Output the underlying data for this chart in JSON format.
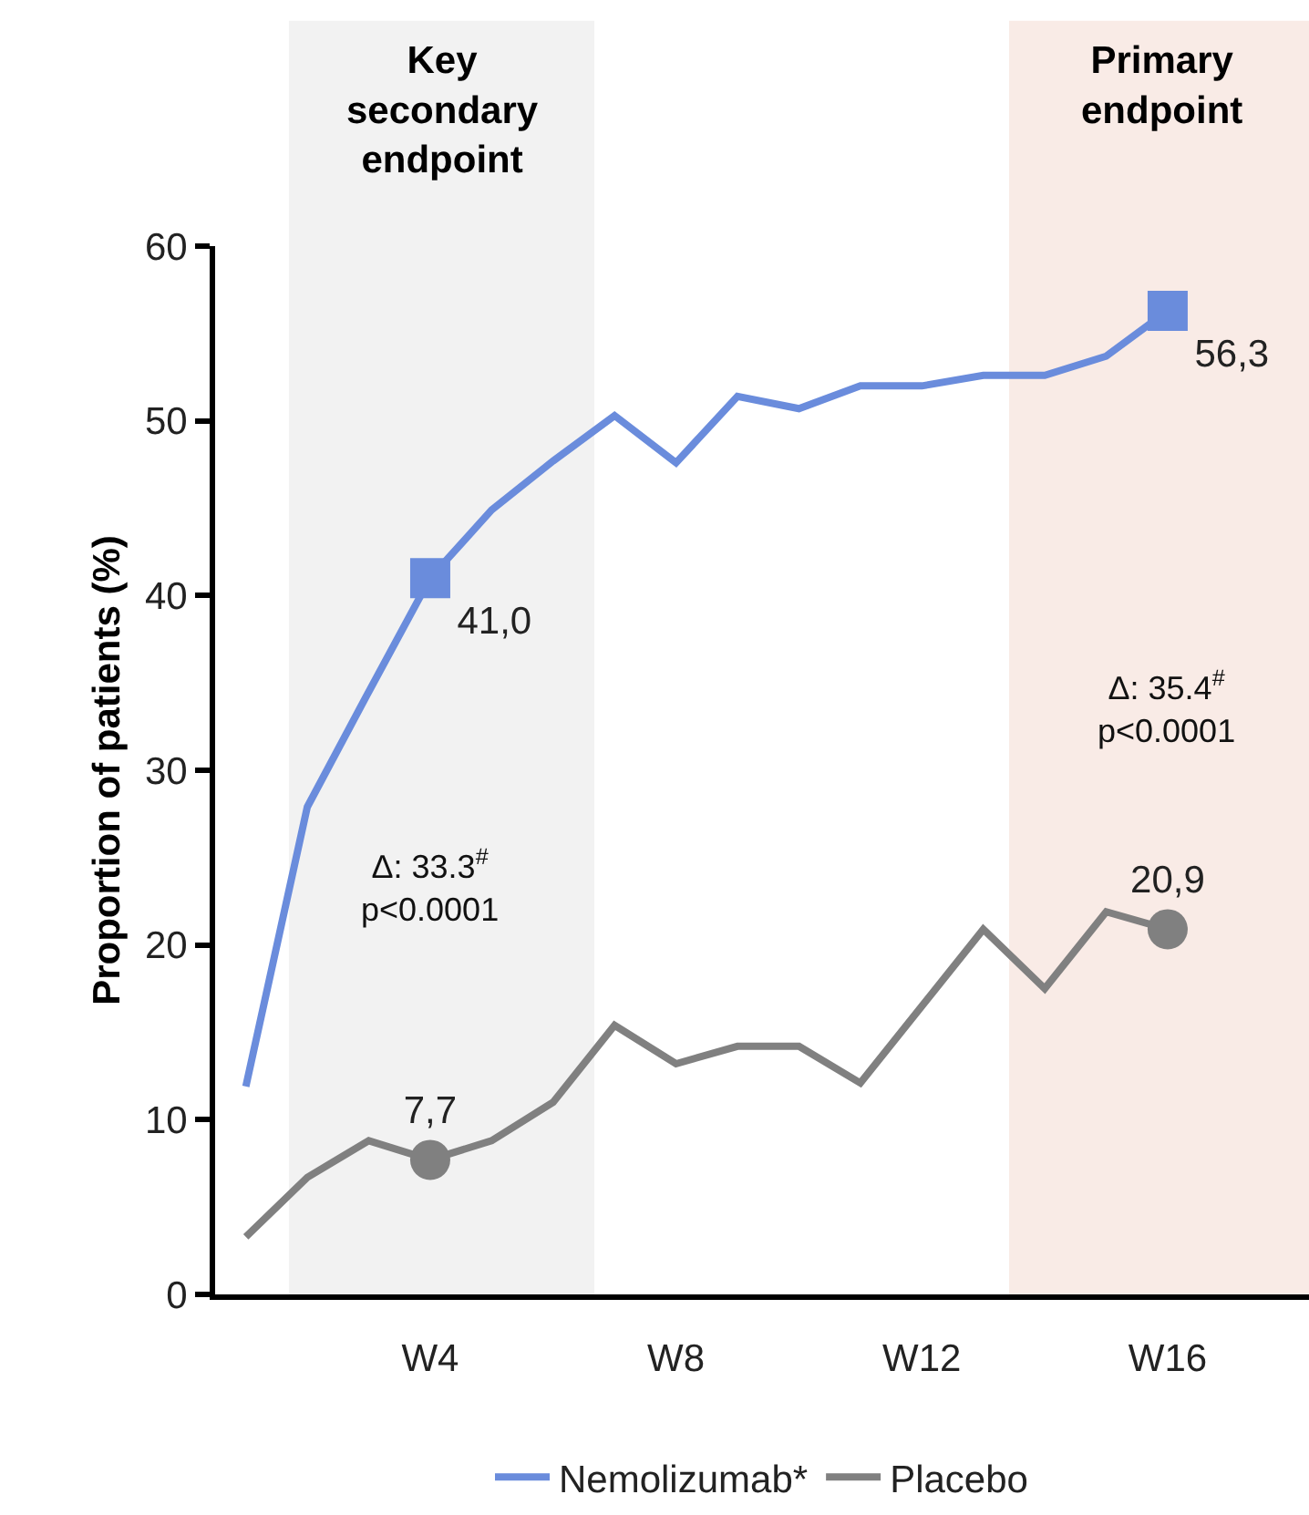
{
  "chart_data": {
    "type": "line",
    "ylabel": "Proportion of patients (%)",
    "categories": [
      null,
      null,
      null,
      "W4",
      null,
      null,
      null,
      "W8",
      null,
      null,
      null,
      "W12",
      null,
      null,
      null,
      "W16"
    ],
    "series": [
      {
        "name": "Nemolizumab*",
        "color": "#6a8cdc",
        "values": [
          11.9,
          27.9,
          34.5,
          41.0,
          44.9,
          47.7,
          50.3,
          47.6,
          51.4,
          50.7,
          52.0,
          52.0,
          52.6,
          52.6,
          53.7,
          56.3
        ],
        "value_labels": [
          null,
          null,
          null,
          "41,0",
          null,
          null,
          null,
          null,
          null,
          null,
          null,
          null,
          null,
          null,
          null,
          "56,3"
        ]
      },
      {
        "name": "Placebo",
        "color": "#808080",
        "values": [
          3.3,
          6.7,
          8.8,
          7.7,
          8.8,
          11.0,
          15.4,
          13.2,
          14.2,
          14.2,
          12.1,
          16.5,
          20.9,
          17.5,
          21.9,
          20.9
        ],
        "value_labels": [
          null,
          null,
          null,
          "7,7",
          null,
          null,
          null,
          null,
          null,
          null,
          null,
          null,
          null,
          null,
          null,
          "20,9"
        ]
      }
    ],
    "ylim": [
      0,
      60
    ],
    "yticks": [
      0,
      10,
      20,
      30,
      40,
      50,
      60
    ],
    "annotations": [
      "Key\nsecondary\nendpoint",
      "Primary\nendpoint",
      "Δ: 33.3$^{#}$\np<0.0001",
      "Δ: 35.4$^{#}$\np<0.0001"
    ],
    "grid": false,
    "legend": "bottom",
    "line_style": "solid"
  }
}
